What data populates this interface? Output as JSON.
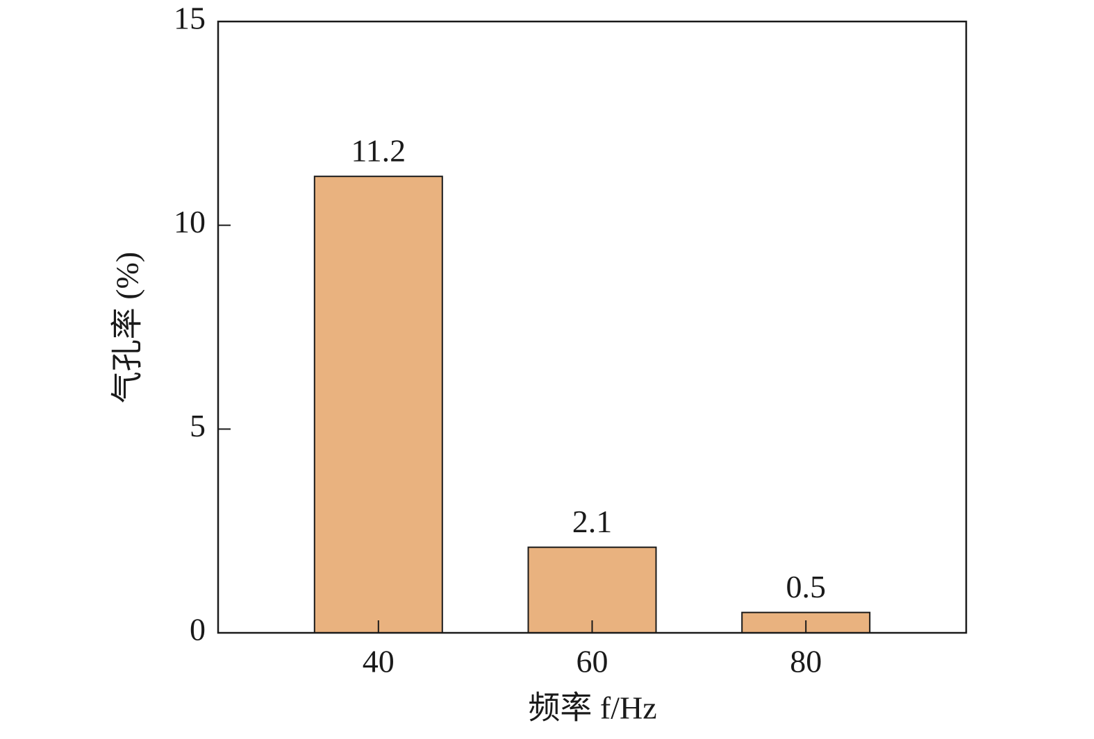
{
  "chart_data": {
    "type": "bar",
    "xlabel": "频率 f/Hz",
    "ylabel": "气孔率 (%)",
    "categories": [
      "40",
      "60",
      "80"
    ],
    "values": [
      11.2,
      2.1,
      0.5
    ],
    "color": "#e9b27f",
    "ylim": [
      0,
      15
    ],
    "yticks": [
      0,
      5,
      10,
      15
    ]
  }
}
